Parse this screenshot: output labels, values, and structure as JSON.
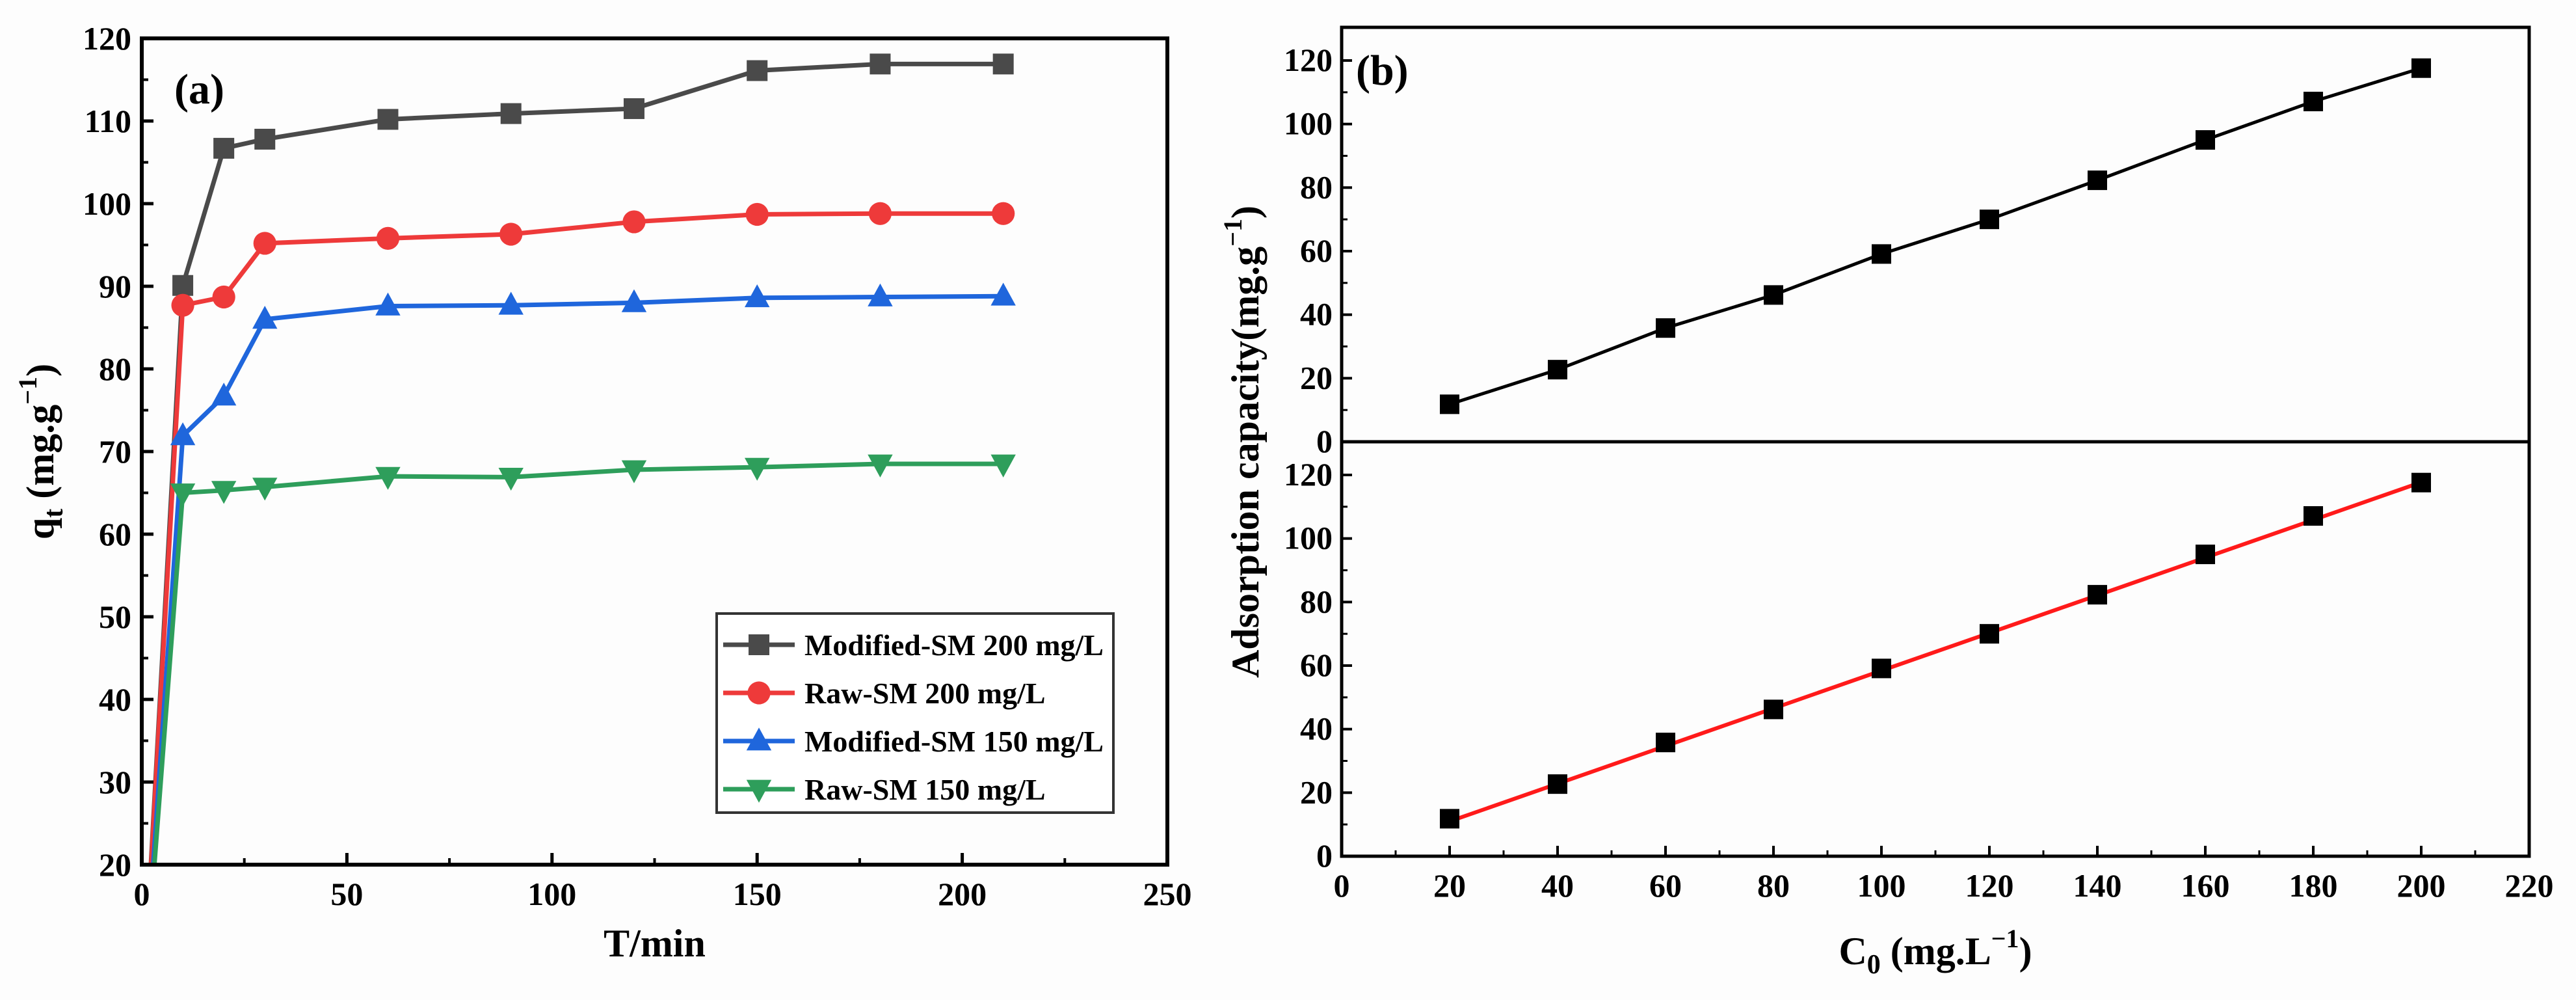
{
  "chart_data": [
    {
      "type": "line",
      "panel_label": "(a)",
      "xlabel": "T/min",
      "ylabel": {
        "main": "q",
        "sub": "t",
        "unit": " (mg.g",
        "sup": "−1",
        "close": ")"
      },
      "xlim": [
        0,
        250
      ],
      "ylim": [
        20,
        120
      ],
      "x_ticks": [
        "0",
        "50",
        "100",
        "150",
        "200",
        "250"
      ],
      "y_ticks": [
        "20",
        "30",
        "40",
        "50",
        "60",
        "70",
        "80",
        "90",
        "100",
        "110",
        "120"
      ],
      "grid": false,
      "legend_position": "bottom-right",
      "x": [
        0,
        10,
        20,
        30,
        60,
        90,
        120,
        150,
        180,
        210
      ],
      "series": [
        {
          "name": "Modified-SM 200 mg/L",
          "color": "#4a4a4a",
          "marker": "square",
          "values": [
            0,
            90.1,
            106.7,
            107.8,
            110.2,
            110.9,
            111.5,
            116.1,
            116.9,
            116.9
          ]
        },
        {
          "name": "Raw-SM 200 mg/L",
          "color": "#ee3a3a",
          "marker": "circle",
          "values": [
            0,
            87.7,
            88.7,
            95.2,
            95.8,
            96.3,
            97.8,
            98.7,
            98.8,
            98.8
          ]
        },
        {
          "name": "Modified-SM 150 mg/L",
          "color": "#1f66dc",
          "marker": "triangle-up",
          "values": [
            0,
            71.9,
            76.7,
            86.0,
            87.6,
            87.7,
            88.0,
            88.6,
            88.7,
            88.8
          ]
        },
        {
          "name": "Raw-SM 150 mg/L",
          "color": "#2e9e5b",
          "marker": "triangle-down",
          "values": [
            0,
            65.0,
            65.3,
            65.7,
            67.0,
            66.9,
            67.8,
            68.1,
            68.5,
            68.5
          ]
        }
      ]
    },
    {
      "type": "scatter",
      "panel_label": "(b)",
      "xlabel": {
        "main": "C",
        "sub": "0",
        "unit": " (mg.L",
        "sup": "−1",
        "close": ")"
      },
      "ylabel": {
        "main": "Adsorption capacity(mg.g",
        "sup": "−1",
        "close": ")"
      },
      "xlim": [
        0,
        220
      ],
      "ylim": [
        0,
        120
      ],
      "x_ticks": [
        "0",
        "20",
        "40",
        "60",
        "80",
        "100",
        "120",
        "140",
        "160",
        "180",
        "200",
        "220"
      ],
      "y_ticks": [
        "0",
        "20",
        "40",
        "60",
        "80",
        "100",
        "120"
      ],
      "grid": false,
      "x": [
        20,
        40,
        60,
        80,
        100,
        120,
        140,
        160,
        180,
        200
      ],
      "series": [
        {
          "name": "Adsorption capacity (top, connected)",
          "color": "#000000",
          "marker": "square",
          "values": [
            11.8,
            22.7,
            35.8,
            46.2,
            59.1,
            70.0,
            82.3,
            95.0,
            107.1,
            117.6
          ]
        },
        {
          "name": "Adsorption capacity (bottom, with linear fit)",
          "color": "#000000",
          "marker": "square",
          "values": [
            11.8,
            22.7,
            35.8,
            46.2,
            59.1,
            70.0,
            82.3,
            95.0,
            107.1,
            117.6
          ]
        }
      ],
      "fit": {
        "color": "#ff1a1a",
        "slope": 0.593,
        "intercept": -0.9,
        "x_range": [
          20,
          200
        ]
      }
    }
  ]
}
